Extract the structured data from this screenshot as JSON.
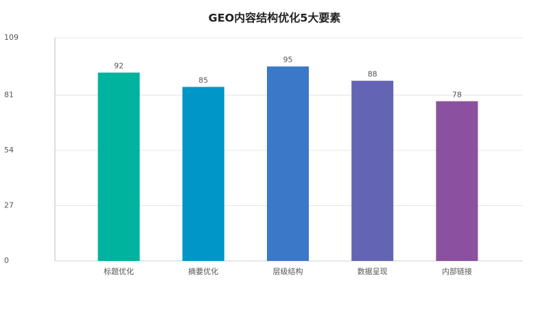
{
  "chart_data": {
    "type": "bar",
    "title": "GEO内容结构优化5大要素",
    "categories": [
      "标题优化",
      "摘要优化",
      "层级结构",
      "数据呈现",
      "内部链接"
    ],
    "values": [
      92,
      85,
      95,
      88,
      78
    ],
    "colors": [
      "#00b39f",
      "#0096c8",
      "#3b78c8",
      "#6464b4",
      "#8c50a0"
    ],
    "ylim": [
      0,
      109
    ],
    "yticks": [
      0,
      27,
      54,
      81,
      109
    ],
    "grid": true
  }
}
